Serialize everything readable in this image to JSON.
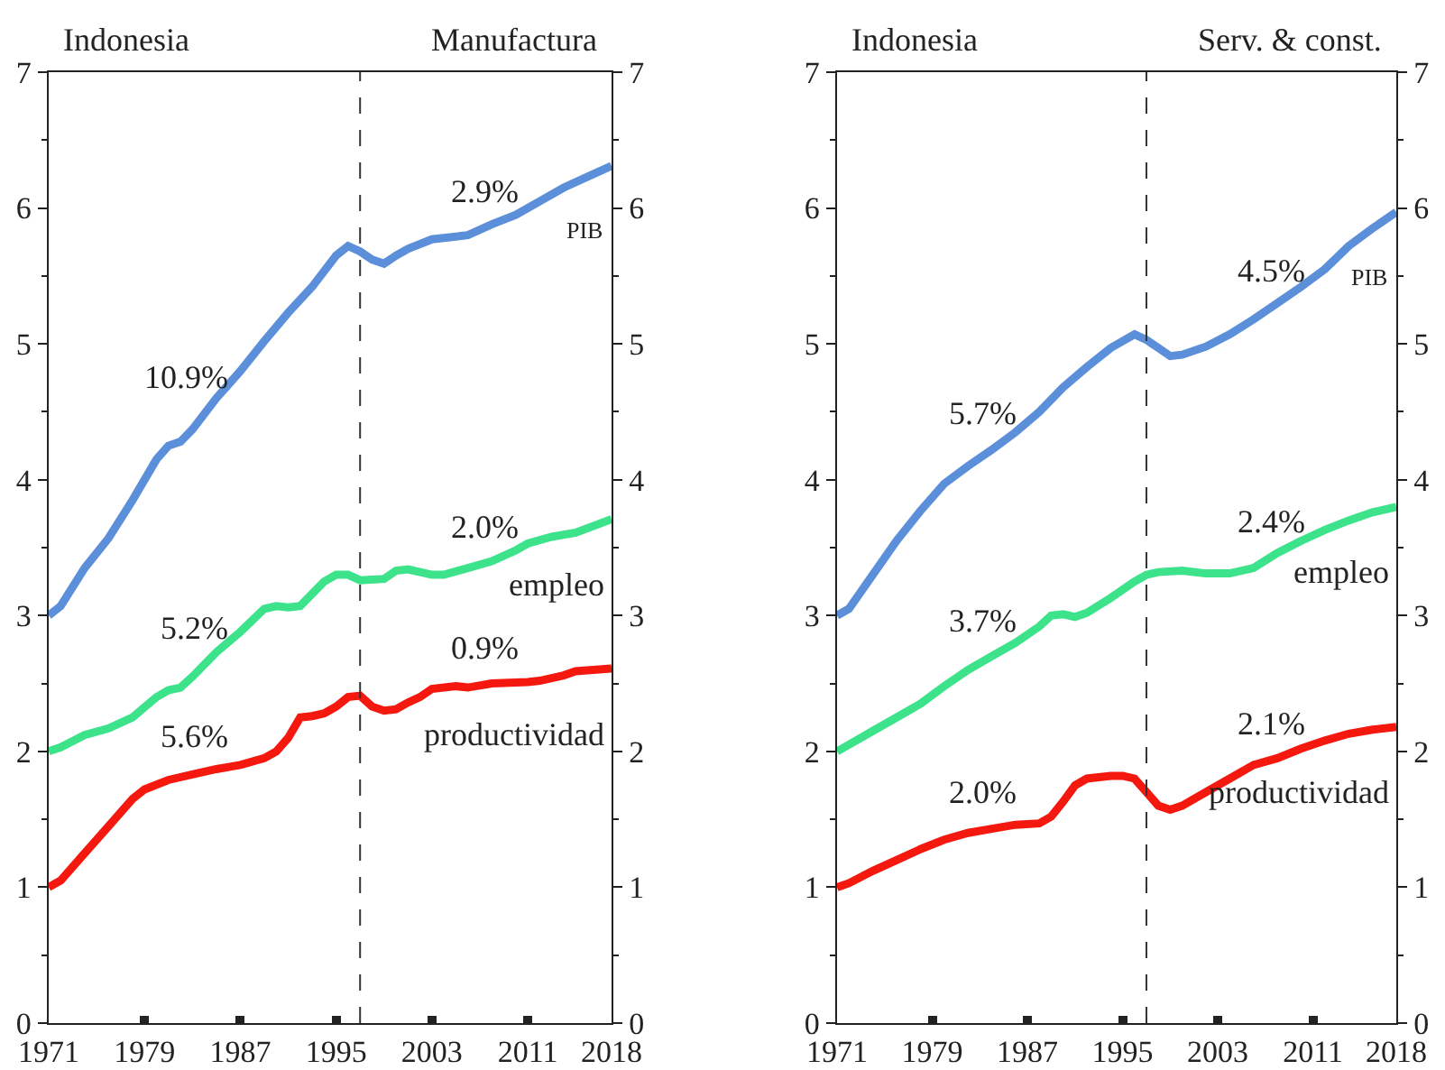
{
  "chart_data": [
    {
      "type": "line",
      "title": "Indonesia",
      "subtitle": "Manufactura",
      "xlim": [
        1971,
        2018
      ],
      "xticks": [
        1971,
        1979,
        1987,
        1995,
        2003,
        2011,
        2018
      ],
      "ylim": [
        0,
        7
      ],
      "yticks": [
        0,
        1,
        2,
        3,
        4,
        5,
        6,
        7
      ],
      "y2lim": [
        0,
        7
      ],
      "y2ticks": [
        0,
        1,
        2,
        3,
        4,
        5,
        6,
        7
      ],
      "grid": false,
      "legend": false,
      "marker": "none",
      "line_style": "solid",
      "ref_lines": [
        {
          "axis": "x",
          "value": 1997,
          "line_style": "dashed",
          "color": "#333333"
        }
      ],
      "series": [
        {
          "name": "PIB",
          "color": "#5b8fd9",
          "x": [
            1971,
            1972,
            1974,
            1976,
            1978,
            1980,
            1981,
            1982,
            1983,
            1985,
            1987,
            1989,
            1991,
            1993,
            1995,
            1996,
            1997,
            1998,
            1999,
            2000,
            2001,
            2003,
            2006,
            2008,
            2010,
            2012,
            2014,
            2016,
            2018
          ],
          "values": [
            3.0,
            3.07,
            3.35,
            3.57,
            3.85,
            4.15,
            4.25,
            4.28,
            4.37,
            4.6,
            4.8,
            5.02,
            5.23,
            5.42,
            5.65,
            5.72,
            5.68,
            5.62,
            5.59,
            5.65,
            5.7,
            5.77,
            5.8,
            5.88,
            5.95,
            6.05,
            6.15,
            6.23,
            6.31
          ]
        },
        {
          "name": "empleo",
          "color": "#3de38a",
          "x": [
            1971,
            1972,
            1974,
            1976,
            1978,
            1980,
            1981,
            1982,
            1983,
            1985,
            1987,
            1989,
            1990,
            1991,
            1992,
            1994,
            1995,
            1996,
            1997,
            1999,
            2000,
            2001,
            2003,
            2004,
            2006,
            2008,
            2010,
            2011,
            2013,
            2015,
            2018
          ],
          "values": [
            2.0,
            2.03,
            2.12,
            2.17,
            2.25,
            2.4,
            2.45,
            2.47,
            2.55,
            2.73,
            2.88,
            3.05,
            3.07,
            3.06,
            3.07,
            3.25,
            3.3,
            3.3,
            3.26,
            3.27,
            3.33,
            3.34,
            3.3,
            3.3,
            3.35,
            3.4,
            3.48,
            3.53,
            3.58,
            3.61,
            3.71
          ]
        },
        {
          "name": "productividad",
          "color": "#f5180f",
          "x": [
            1971,
            1972,
            1974,
            1976,
            1978,
            1979,
            1981,
            1983,
            1985,
            1987,
            1989,
            1990,
            1991,
            1992,
            1993,
            1994,
            1995,
            1996,
            1997,
            1998,
            1999,
            2000,
            2001,
            2002,
            2003,
            2005,
            2006,
            2008,
            2011,
            2012,
            2014,
            2015,
            2018
          ],
          "values": [
            1.0,
            1.05,
            1.25,
            1.45,
            1.65,
            1.72,
            1.79,
            1.83,
            1.87,
            1.9,
            1.95,
            2.0,
            2.1,
            2.25,
            2.26,
            2.28,
            2.33,
            2.4,
            2.41,
            2.33,
            2.3,
            2.31,
            2.36,
            2.4,
            2.46,
            2.48,
            2.47,
            2.5,
            2.51,
            2.52,
            2.56,
            2.59,
            2.61
          ]
        }
      ],
      "annotations": [
        "10.9%",
        "2.9%",
        "5.2%",
        "2.0%",
        "5.6%",
        "0.9%"
      ]
    },
    {
      "type": "line",
      "title": "Indonesia",
      "subtitle": "Serv. & const.",
      "xlim": [
        1971,
        2018
      ],
      "xticks": [
        1971,
        1979,
        1987,
        1995,
        2003,
        2011,
        2018
      ],
      "ylim": [
        0,
        7
      ],
      "yticks": [
        0,
        1,
        2,
        3,
        4,
        5,
        6,
        7
      ],
      "y2lim": [
        0,
        7
      ],
      "y2ticks": [
        0,
        1,
        2,
        3,
        4,
        5,
        6,
        7
      ],
      "grid": false,
      "legend": false,
      "marker": "none",
      "line_style": "solid",
      "ref_lines": [
        {
          "axis": "x",
          "value": 1997,
          "line_style": "dashed",
          "color": "#333333"
        }
      ],
      "series": [
        {
          "name": "PIB",
          "color": "#5b8fd9",
          "x": [
            1971,
            1972,
            1974,
            1976,
            1978,
            1980,
            1982,
            1984,
            1986,
            1988,
            1990,
            1992,
            1994,
            1996,
            1997,
            1998,
            1999,
            2000,
            2002,
            2004,
            2006,
            2008,
            2010,
            2012,
            2014,
            2016,
            2018
          ],
          "values": [
            3.0,
            3.05,
            3.3,
            3.55,
            3.77,
            3.97,
            4.1,
            4.22,
            4.35,
            4.5,
            4.68,
            4.83,
            4.97,
            5.07,
            5.03,
            4.97,
            4.91,
            4.92,
            4.98,
            5.07,
            5.18,
            5.3,
            5.42,
            5.55,
            5.72,
            5.85,
            5.97
          ]
        },
        {
          "name": "empleo",
          "color": "#3de38a",
          "x": [
            1971,
            1972,
            1974,
            1976,
            1978,
            1980,
            1982,
            1984,
            1986,
            1988,
            1989,
            1990,
            1991,
            1992,
            1994,
            1996,
            1997,
            1998,
            2000,
            2002,
            2004,
            2006,
            2008,
            2010,
            2012,
            2014,
            2016,
            2018
          ],
          "values": [
            2.0,
            2.05,
            2.15,
            2.25,
            2.35,
            2.48,
            2.6,
            2.7,
            2.8,
            2.92,
            3.0,
            3.01,
            2.99,
            3.02,
            3.13,
            3.25,
            3.3,
            3.32,
            3.33,
            3.31,
            3.31,
            3.35,
            3.46,
            3.55,
            3.63,
            3.7,
            3.76,
            3.8
          ]
        },
        {
          "name": "productividad",
          "color": "#f5180f",
          "x": [
            1971,
            1972,
            1974,
            1976,
            1978,
            1980,
            1982,
            1984,
            1986,
            1988,
            1989,
            1990,
            1991,
            1992,
            1994,
            1995,
            1996,
            1997,
            1998,
            1999,
            2000,
            2002,
            2004,
            2006,
            2008,
            2010,
            2012,
            2014,
            2016,
            2018
          ],
          "values": [
            1.0,
            1.03,
            1.12,
            1.2,
            1.28,
            1.35,
            1.4,
            1.43,
            1.46,
            1.47,
            1.52,
            1.63,
            1.75,
            1.8,
            1.82,
            1.82,
            1.8,
            1.7,
            1.6,
            1.57,
            1.6,
            1.7,
            1.8,
            1.9,
            1.95,
            2.02,
            2.08,
            2.13,
            2.16,
            2.18
          ]
        }
      ],
      "annotations": [
        "5.7%",
        "4.5%",
        "3.7%",
        "2.4%",
        "2.0%",
        "2.1%"
      ]
    }
  ]
}
